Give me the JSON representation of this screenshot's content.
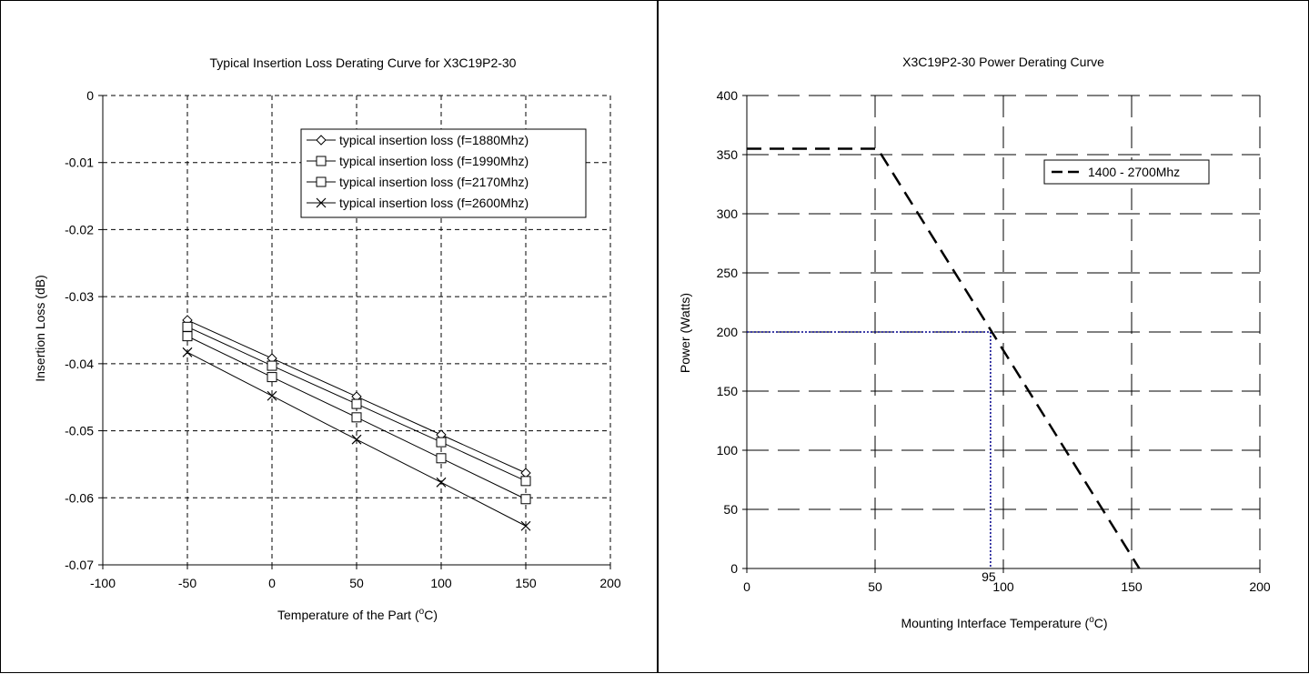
{
  "chart_data": [
    {
      "type": "line",
      "title": "Typical Insertion Loss Derating Curve for X3C19P2-30",
      "xlabel": "Temperature of the Part (°C)",
      "ylabel": "Insertion Loss (dB)",
      "xlim": [
        -100,
        200
      ],
      "ylim": [
        -0.07,
        0
      ],
      "xticks": [
        -100,
        -50,
        0,
        50,
        100,
        150,
        200
      ],
      "yticks": [
        0,
        -0.01,
        -0.02,
        -0.03,
        -0.04,
        -0.05,
        -0.06,
        -0.07
      ],
      "xtick_labels": [
        "-100",
        "-50",
        "0",
        "50",
        "100",
        "150",
        "200"
      ],
      "ytick_labels": [
        "0",
        "-0.01",
        "-0.02",
        "-0.03",
        "-0.04",
        "-0.05",
        "-0.06",
        "-0.07"
      ],
      "grid": true,
      "legend_position": "top-right",
      "x": [
        -50,
        0,
        50,
        100,
        150
      ],
      "series": [
        {
          "name": "typical insertion loss (f=1880Mhz)",
          "marker": "diamond",
          "values": [
            -0.0335,
            -0.0392,
            -0.0449,
            -0.0506,
            -0.0563
          ]
        },
        {
          "name": "typical insertion loss (f=1990Mhz)",
          "marker": "square",
          "values": [
            -0.0345,
            -0.0403,
            -0.046,
            -0.0517,
            -0.0575
          ]
        },
        {
          "name": "typical insertion loss (f=2170Mhz)",
          "marker": "square",
          "values": [
            -0.0359,
            -0.042,
            -0.048,
            -0.0541,
            -0.0602
          ]
        },
        {
          "name": "typical insertion loss (f=2600Mhz)",
          "marker": "x",
          "values": [
            -0.0383,
            -0.0448,
            -0.0513,
            -0.0577,
            -0.0642
          ]
        }
      ]
    },
    {
      "type": "line",
      "title": "X3C19P2-30 Power Derating Curve",
      "xlabel": "Mounting Interface Temperature (°C)",
      "ylabel": "Power (Watts)",
      "xlim": [
        0,
        200
      ],
      "ylim": [
        0,
        400
      ],
      "xticks": [
        0,
        50,
        100,
        150,
        200
      ],
      "yticks": [
        0,
        50,
        100,
        150,
        200,
        250,
        300,
        350,
        400
      ],
      "xtick_labels": [
        "0",
        "50",
        "100",
        "150",
        "200"
      ],
      "ytick_labels": [
        "0",
        "50",
        "100",
        "150",
        "200",
        "250",
        "300",
        "350",
        "400"
      ],
      "grid": true,
      "legend_position": "top-right",
      "series": [
        {
          "name": "1400 - 2700Mhz",
          "x": [
            0,
            51,
            153
          ],
          "values": [
            355,
            355,
            0
          ]
        }
      ],
      "reference_lines": {
        "x": 95,
        "y": 200,
        "color": "#00008b"
      },
      "annotations": [
        {
          "text": "95",
          "x": 95,
          "y": 0
        }
      ]
    }
  ]
}
